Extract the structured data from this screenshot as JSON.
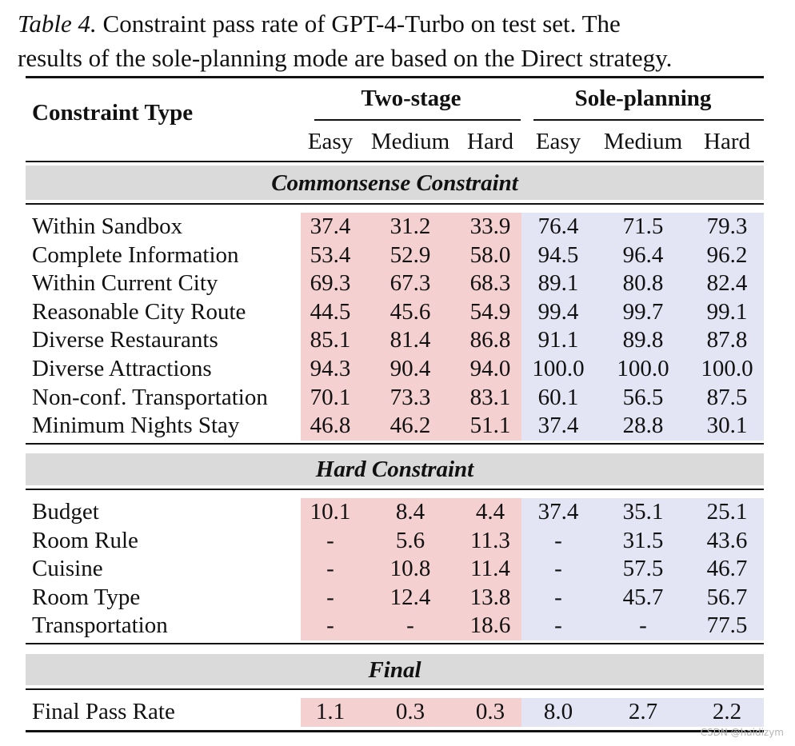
{
  "caption": {
    "lead": "Table 4.",
    "line1_rest": " Constraint pass rate of GPT-4-Turbo on test set.  The",
    "line2": "results of the sole-planning mode are based on the Direct strategy."
  },
  "table": {
    "row_header": "Constraint Type",
    "groups": [
      "Two-stage",
      "Sole-planning"
    ],
    "subheaders": [
      "Easy",
      "Medium",
      "Hard",
      "Easy",
      "Medium",
      "Hard"
    ],
    "sections": [
      {
        "title": "Commonsense Constraint",
        "rows": [
          {
            "label": "Within Sandbox",
            "values": [
              "37.4",
              "31.2",
              "33.9",
              "76.4",
              "71.5",
              "79.3"
            ]
          },
          {
            "label": "Complete Information",
            "values": [
              "53.4",
              "52.9",
              "58.0",
              "94.5",
              "96.4",
              "96.2"
            ]
          },
          {
            "label": "Within Current City",
            "values": [
              "69.3",
              "67.3",
              "68.3",
              "89.1",
              "80.8",
              "82.4"
            ]
          },
          {
            "label": "Reasonable City Route",
            "values": [
              "44.5",
              "45.6",
              "54.9",
              "99.4",
              "99.7",
              "99.1"
            ]
          },
          {
            "label": "Diverse Restaurants",
            "values": [
              "85.1",
              "81.4",
              "86.8",
              "91.1",
              "89.8",
              "87.8"
            ]
          },
          {
            "label": "Diverse Attractions",
            "values": [
              "94.3",
              "90.4",
              "94.0",
              "100.0",
              "100.0",
              "100.0"
            ]
          },
          {
            "label": "Non-conf. Transportation",
            "values": [
              "70.1",
              "73.3",
              "83.1",
              "60.1",
              "56.5",
              "87.5"
            ]
          },
          {
            "label": "Minimum Nights Stay",
            "values": [
              "46.8",
              "46.2",
              "51.1",
              "37.4",
              "28.8",
              "30.1"
            ]
          }
        ]
      },
      {
        "title": "Hard Constraint",
        "rows": [
          {
            "label": "Budget",
            "values": [
              "10.1",
              "8.4",
              "4.4",
              "37.4",
              "35.1",
              "25.1"
            ]
          },
          {
            "label": "Room Rule",
            "values": [
              "-",
              "5.6",
              "11.3",
              "-",
              "31.5",
              "43.6"
            ]
          },
          {
            "label": "Cuisine",
            "values": [
              "-",
              "10.8",
              "11.4",
              "-",
              "57.5",
              "46.7"
            ]
          },
          {
            "label": "Room Type",
            "values": [
              "-",
              "12.4",
              "13.8",
              "-",
              "45.7",
              "56.7"
            ]
          },
          {
            "label": "Transportation",
            "values": [
              "-",
              "-",
              "18.6",
              "-",
              "-",
              "77.5"
            ]
          }
        ]
      },
      {
        "title": "Final",
        "rows": [
          {
            "label": "Final Pass Rate",
            "values": [
              "1.1",
              "0.3",
              "0.3",
              "8.0",
              "2.7",
              "2.2"
            ]
          }
        ]
      }
    ]
  },
  "watermark": "CSDN @haidizym"
}
